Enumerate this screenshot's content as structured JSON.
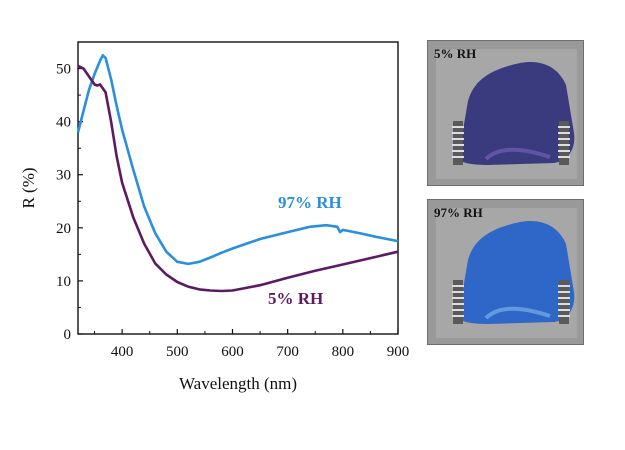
{
  "chart_data": {
    "type": "line",
    "xlabel": "Wavelength (nm)",
    "ylabel": "R  (%)",
    "xlim": [
      320,
      900
    ],
    "ylim": [
      0,
      55
    ],
    "x_ticks": [
      400,
      500,
      600,
      700,
      800,
      900
    ],
    "y_ticks": [
      0,
      10,
      20,
      30,
      40,
      50
    ],
    "grid": false,
    "series": [
      {
        "name": "97% RH",
        "color": "#2a8fdc",
        "points": [
          [
            320,
            38
          ],
          [
            330,
            42
          ],
          [
            340,
            46
          ],
          [
            350,
            49
          ],
          [
            360,
            51.5
          ],
          [
            365,
            52.5
          ],
          [
            370,
            52
          ],
          [
            380,
            48
          ],
          [
            390,
            43
          ],
          [
            400,
            38.5
          ],
          [
            420,
            31
          ],
          [
            440,
            24
          ],
          [
            460,
            19
          ],
          [
            480,
            15.5
          ],
          [
            500,
            13.6
          ],
          [
            520,
            13.2
          ],
          [
            540,
            13.6
          ],
          [
            560,
            14.4
          ],
          [
            580,
            15.3
          ],
          [
            600,
            16.1
          ],
          [
            650,
            17.9
          ],
          [
            700,
            19.2
          ],
          [
            740,
            20.2
          ],
          [
            770,
            20.5
          ],
          [
            790,
            20.2
          ],
          [
            795,
            19.2
          ],
          [
            800,
            19.6
          ],
          [
            830,
            19
          ],
          [
            860,
            18.3
          ],
          [
            900,
            17.5
          ]
        ]
      },
      {
        "name": "5% RH",
        "color": "#5c1a63",
        "points": [
          [
            320,
            50.5
          ],
          [
            330,
            50
          ],
          [
            340,
            48.5
          ],
          [
            350,
            47
          ],
          [
            355,
            46.8
          ],
          [
            360,
            47
          ],
          [
            370,
            45.5
          ],
          [
            380,
            40
          ],
          [
            390,
            33.5
          ],
          [
            400,
            28.5
          ],
          [
            420,
            22
          ],
          [
            440,
            17
          ],
          [
            460,
            13.3
          ],
          [
            480,
            11.2
          ],
          [
            500,
            9.8
          ],
          [
            520,
            8.9
          ],
          [
            540,
            8.4
          ],
          [
            560,
            8.2
          ],
          [
            580,
            8.1
          ],
          [
            600,
            8.2
          ],
          [
            650,
            9.2
          ],
          [
            700,
            10.6
          ],
          [
            750,
            11.9
          ],
          [
            800,
            13.1
          ],
          [
            850,
            14.3
          ],
          [
            900,
            15.5
          ]
        ]
      }
    ]
  },
  "photos": [
    {
      "label": "5% RH",
      "film_color": "#3a3b7e",
      "sheen_color": "#6c5ab0"
    },
    {
      "label": "97% RH",
      "film_color": "#2f67c8",
      "sheen_color": "#6fa6e6"
    }
  ]
}
